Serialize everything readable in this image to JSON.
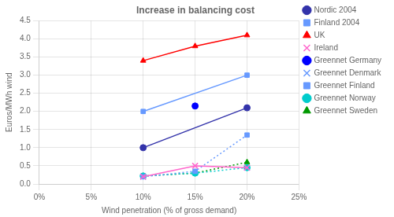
{
  "chart_data": {
    "type": "line",
    "title": "Increase in balancing cost",
    "x_label": "Wind penetration (% of gross demand)",
    "y_label": "Euros/MWh wind",
    "xlim": [
      0.0,
      0.25
    ],
    "ylim": [
      0.0,
      4.5
    ],
    "xticks": [
      {
        "value": 0.0,
        "label": "0%"
      },
      {
        "value": 0.05,
        "label": "5%"
      },
      {
        "value": 0.1,
        "label": "10%"
      },
      {
        "value": 0.15,
        "label": "15%"
      },
      {
        "value": 0.2,
        "label": "20%"
      },
      {
        "value": 0.25,
        "label": "25%"
      }
    ],
    "yticks": [
      {
        "value": 0.0,
        "label": "0.0"
      },
      0.5,
      {
        "value": 1.0,
        "label": "1.0"
      },
      1.5,
      {
        "value": 2.0,
        "label": "2.0"
      },
      2.5,
      {
        "value": 3.0,
        "label": "3.0"
      },
      3.5,
      {
        "value": 4.0,
        "label": "4.0"
      },
      4.5
    ],
    "grid": true,
    "legend": "right",
    "series": [
      {
        "name": "Nordic 2004",
        "color": "#3333AA",
        "marker": "circle",
        "line_style": "solid",
        "x": [
          0.1,
          0.2
        ],
        "values": [
          1.0,
          2.1
        ]
      },
      {
        "name": "Finland 2004",
        "color": "#6699FF",
        "marker": "square",
        "line_style": "solid",
        "x": [
          0.1,
          0.2
        ],
        "values": [
          2.0,
          3.0
        ]
      },
      {
        "name": "UK",
        "color": "#FF0000",
        "marker": "triangle",
        "line_style": "solid",
        "x": [
          0.1,
          0.15,
          0.2
        ],
        "values": [
          3.4,
          3.8,
          4.1
        ]
      },
      {
        "name": "Ireland",
        "color": "#FF66CC",
        "marker": "cross",
        "line_style": "solid",
        "x": [
          0.1,
          0.15,
          0.2
        ],
        "values": [
          0.2,
          0.5,
          0.45
        ]
      },
      {
        "name": "Greennet Germany",
        "color": "#0000FF",
        "marker": "circle",
        "line_style": "none",
        "x": [
          0.15
        ],
        "values": [
          2.15
        ]
      },
      {
        "name": "Greennet Denmark",
        "color": "#6699FF",
        "marker": "cross",
        "line_style": "none",
        "x": [
          0.1,
          0.2
        ],
        "values": [
          0.2,
          0.45
        ]
      },
      {
        "name": "Greennet Finland",
        "color": "#6699FF",
        "marker": "square",
        "line_style": "dotted",
        "x": [
          0.1,
          0.15,
          0.2
        ],
        "values": [
          0.2,
          0.35,
          1.35
        ]
      },
      {
        "name": "Greennet Norway",
        "color": "#00CCCC",
        "marker": "circle",
        "line_style": "dotted",
        "x": [
          0.1,
          0.15,
          0.2
        ],
        "values": [
          0.22,
          0.3,
          0.45
        ]
      },
      {
        "name": "Greennet Sweden",
        "color": "#009900",
        "marker": "triangle",
        "line_style": "dotted",
        "x": [
          0.1,
          0.15,
          0.2
        ],
        "values": [
          0.22,
          0.3,
          0.6
        ]
      }
    ]
  }
}
